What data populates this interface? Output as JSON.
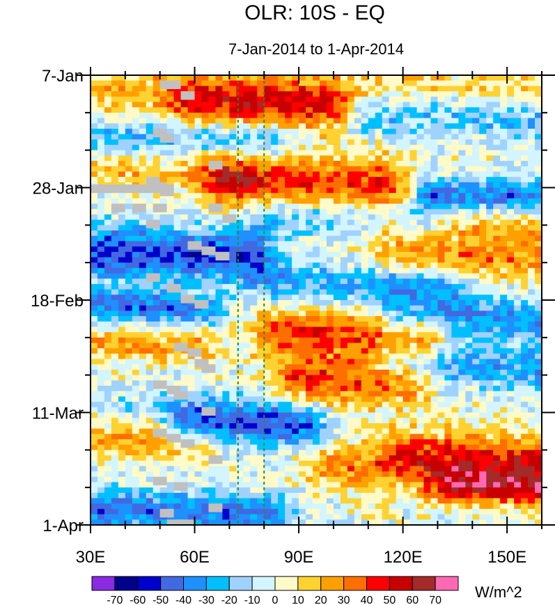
{
  "chart_data": {
    "type": "heatmap",
    "title": "OLR: 10S - EQ",
    "subtitle": "7-Jan-2014 to 1-Apr-2014",
    "x_axis": {
      "range": [
        30,
        160
      ],
      "tick_values": [
        30,
        60,
        90,
        120,
        150
      ],
      "tick_labels": [
        "30E",
        "60E",
        "90E",
        "120E",
        "150E"
      ],
      "minor_tick_step": 10
    },
    "y_axis": {
      "range_days": [
        0,
        84
      ],
      "tick_values": [
        0,
        21,
        42,
        63,
        84
      ],
      "tick_labels": [
        "7-Jan",
        "28-Jan",
        "18-Feb",
        "11-Mar",
        "1-Apr"
      ],
      "minor_tick_step": 7
    },
    "reference_lines_lon": [
      72.5,
      80
    ],
    "colorbar": {
      "units": "W/m^2",
      "labels": [
        "-70",
        "-60",
        "-50",
        "-40",
        "-30",
        "-20",
        "-10",
        "0",
        "10",
        "20",
        "30",
        "40",
        "50",
        "60",
        "70"
      ],
      "colors": [
        "#8a2be2",
        "#00008b",
        "#0000cd",
        "#4169e1",
        "#1e90ff",
        "#00bfff",
        "#a0d2ff",
        "#d2f5ff",
        "#fffac8",
        "#ffd232",
        "#ffa000",
        "#ff6e00",
        "#ff0000",
        "#c80000",
        "#a52a2a",
        "#ff69b4"
      ]
    },
    "missing_color": "#c0c0c0",
    "anomaly_bands": [
      {
        "day": 2,
        "lon_start": 35,
        "lon_end": 160,
        "value": 20,
        "amp": 6
      },
      {
        "day": 5,
        "lon_start": 60,
        "lon_end": 100,
        "value": 35,
        "amp": 4
      },
      {
        "day": 7,
        "lon_start": 110,
        "lon_end": 160,
        "value": -35,
        "amp": 4
      },
      {
        "day": 11,
        "lon_start": 30,
        "lon_end": 80,
        "value": -25,
        "amp": 3
      },
      {
        "day": 20,
        "lon_start": 70,
        "lon_end": 115,
        "value": 45,
        "amp": 5
      },
      {
        "day": 18,
        "lon_start": 30,
        "lon_end": 70,
        "value": 20,
        "amp": 3
      },
      {
        "day": 22,
        "lon_start": 130,
        "lon_end": 160,
        "value": -40,
        "amp": 3
      },
      {
        "day": 26,
        "lon_start": 80,
        "lon_end": 125,
        "value": -25,
        "amp": 4
      },
      {
        "day": 29,
        "lon_start": 115,
        "lon_end": 160,
        "value": 20,
        "amp": 4
      },
      {
        "day": 33,
        "lon_start": 30,
        "lon_end": 75,
        "value": -50,
        "amp": 5
      },
      {
        "day": 34,
        "lon_start": 120,
        "lon_end": 160,
        "value": 25,
        "amp": 3
      },
      {
        "day": 39,
        "lon_start": 85,
        "lon_end": 130,
        "value": -30,
        "amp": 4
      },
      {
        "day": 43,
        "lon_start": 30,
        "lon_end": 60,
        "value": -40,
        "amp": 3
      },
      {
        "day": 45,
        "lon_start": 120,
        "lon_end": 160,
        "value": -35,
        "amp": 4
      },
      {
        "day": 48,
        "lon_start": 85,
        "lon_end": 125,
        "value": 40,
        "amp": 5
      },
      {
        "day": 50,
        "lon_start": 30,
        "lon_end": 60,
        "value": 25,
        "amp": 3
      },
      {
        "day": 54,
        "lon_start": 120,
        "lon_end": 160,
        "value": -30,
        "amp": 4
      },
      {
        "day": 57,
        "lon_start": 90,
        "lon_end": 120,
        "value": 40,
        "amp": 4
      },
      {
        "day": 61,
        "lon_start": 30,
        "lon_end": 80,
        "value": -10,
        "amp": 3
      },
      {
        "day": 65,
        "lon_start": 60,
        "lon_end": 90,
        "value": -45,
        "amp": 4
      },
      {
        "day": 68,
        "lon_start": 30,
        "lon_end": 60,
        "value": 25,
        "amp": 3
      },
      {
        "day": 70,
        "lon_start": 120,
        "lon_end": 160,
        "value": 30,
        "amp": 4
      },
      {
        "day": 73,
        "lon_start": 100,
        "lon_end": 160,
        "value": 30,
        "amp": 4
      },
      {
        "day": 77,
        "lon_start": 135,
        "lon_end": 160,
        "value": 45,
        "amp": 3
      },
      {
        "day": 81,
        "lon_start": 30,
        "lon_end": 80,
        "value": -40,
        "amp": 4
      }
    ],
    "missing_cells": [
      [
        50,
        1
      ],
      [
        52,
        1
      ],
      [
        56,
        3
      ],
      [
        48,
        10
      ],
      [
        50,
        11
      ],
      [
        64,
        16
      ],
      [
        46,
        19
      ],
      [
        48,
        20
      ],
      [
        50,
        21
      ],
      [
        36,
        24
      ],
      [
        42,
        24
      ],
      [
        48,
        24
      ],
      [
        64,
        24
      ],
      [
        68,
        26
      ],
      [
        46,
        27
      ],
      [
        58,
        31
      ],
      [
        62,
        32
      ],
      [
        66,
        33
      ],
      [
        46,
        37
      ],
      [
        52,
        39
      ],
      [
        56,
        41
      ],
      [
        60,
        42
      ],
      [
        54,
        50
      ],
      [
        58,
        51
      ],
      [
        60,
        53
      ],
      [
        62,
        54
      ],
      [
        48,
        57
      ],
      [
        52,
        58
      ],
      [
        54,
        59
      ],
      [
        62,
        62
      ],
      [
        48,
        66
      ],
      [
        52,
        67
      ],
      [
        56,
        68
      ],
      [
        64,
        71
      ],
      [
        48,
        75
      ],
      [
        54,
        76
      ],
      [
        64,
        80
      ],
      [
        50,
        81
      ],
      [
        52,
        83
      ],
      [
        56,
        83
      ]
    ]
  }
}
